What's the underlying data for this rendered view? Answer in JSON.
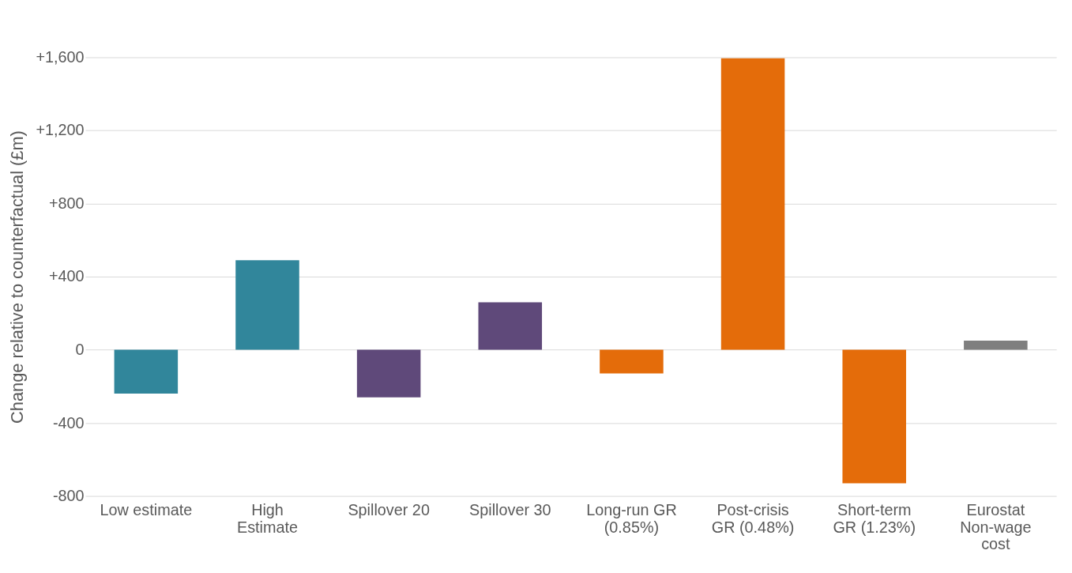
{
  "chart_data": {
    "type": "bar",
    "ylabel": "Change relative to counterfactual (£m)",
    "categories": [
      "Low estimate",
      "High\nEstimate",
      "Spillover 20",
      "Spillover 30",
      "Long-run GR\n(0.85%)",
      "Post-crisis\nGR (0.48%)",
      "Short-term\nGR (1.23%)",
      "Eurostat\nNon-wage\ncost"
    ],
    "values": [
      -240,
      490,
      -260,
      260,
      -130,
      1595,
      -730,
      50
    ],
    "colors": [
      "#31869b",
      "#31869b",
      "#5f497a",
      "#5f497a",
      "#e46c0a",
      "#e46c0a",
      "#e46c0a",
      "#7f7f7f"
    ],
    "ylim": [
      -800,
      1600
    ],
    "yticks": [
      -800,
      -400,
      {
        "value": 0,
        "label": "0"
      },
      {
        "value": 400,
        "label": "+400"
      },
      {
        "value": 800,
        "label": "+800"
      },
      {
        "value": 1200,
        "label": "+1,200"
      },
      {
        "value": 1600,
        "label": "+1,600"
      }
    ],
    "grid": "y"
  }
}
